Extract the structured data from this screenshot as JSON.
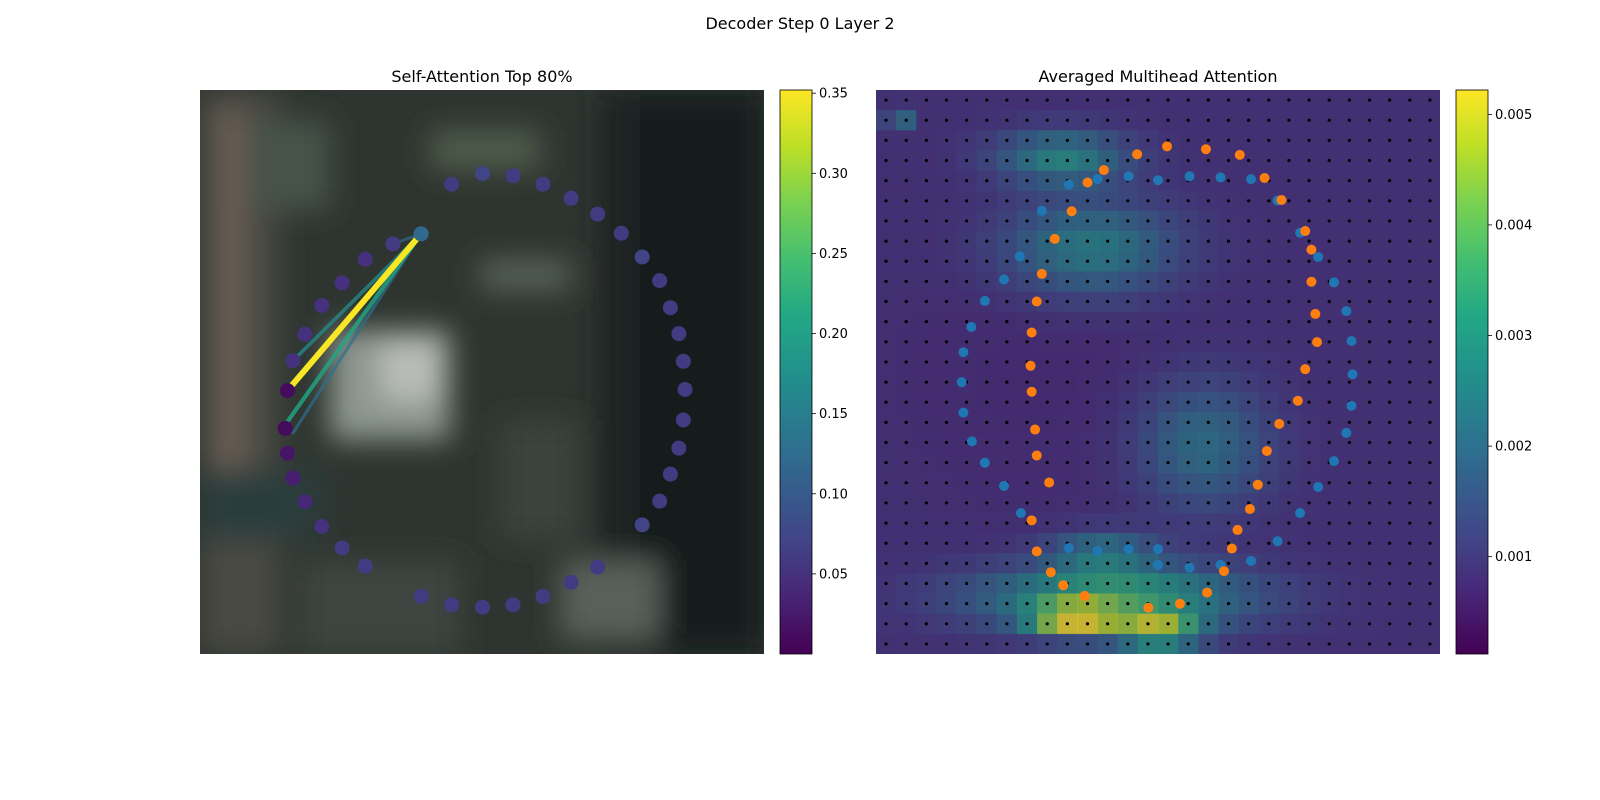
{
  "figure": {
    "title": "Decoder Step 0 Layer 2"
  },
  "chart_data": [
    {
      "type": "scatter",
      "title": "Self-Attention Top 80%",
      "xlim": [
        0,
        1
      ],
      "ylim": [
        0,
        1
      ],
      "axes_visible": false,
      "background": "blurred photo",
      "points_desc": "40 control points on a circle, colored by attention weight",
      "points": [
        {
          "x": 0.501,
          "y": 0.852,
          "w": 0.07
        },
        {
          "x": 0.555,
          "y": 0.848,
          "w": 0.06
        },
        {
          "x": 0.608,
          "y": 0.833,
          "w": 0.06
        },
        {
          "x": 0.658,
          "y": 0.808,
          "w": 0.06
        },
        {
          "x": 0.705,
          "y": 0.78,
          "w": 0.06
        },
        {
          "x": 0.747,
          "y": 0.746,
          "w": 0.06
        },
        {
          "x": 0.784,
          "y": 0.704,
          "w": 0.07
        },
        {
          "x": 0.815,
          "y": 0.662,
          "w": 0.06
        },
        {
          "x": 0.834,
          "y": 0.614,
          "w": 0.06
        },
        {
          "x": 0.849,
          "y": 0.568,
          "w": 0.06
        },
        {
          "x": 0.857,
          "y": 0.519,
          "w": 0.06
        },
        {
          "x": 0.86,
          "y": 0.469,
          "w": 0.06
        },
        {
          "x": 0.857,
          "y": 0.415,
          "w": 0.06
        },
        {
          "x": 0.849,
          "y": 0.365,
          "w": 0.06
        },
        {
          "x": 0.834,
          "y": 0.319,
          "w": 0.06
        },
        {
          "x": 0.815,
          "y": 0.271,
          "w": 0.06
        },
        {
          "x": 0.784,
          "y": 0.229,
          "w": 0.07
        },
        {
          "x": 0.705,
          "y": 0.154,
          "w": 0.06
        },
        {
          "x": 0.658,
          "y": 0.127,
          "w": 0.06
        },
        {
          "x": 0.608,
          "y": 0.102,
          "w": 0.06
        },
        {
          "x": 0.555,
          "y": 0.087,
          "w": 0.06
        },
        {
          "x": 0.501,
          "y": 0.083,
          "w": 0.06
        },
        {
          "x": 0.446,
          "y": 0.087,
          "w": 0.06
        },
        {
          "x": 0.392,
          "y": 0.102,
          "w": 0.06
        },
        {
          "x": 0.293,
          "y": 0.156,
          "w": 0.06
        },
        {
          "x": 0.252,
          "y": 0.188,
          "w": 0.06
        },
        {
          "x": 0.216,
          "y": 0.226,
          "w": 0.05
        },
        {
          "x": 0.186,
          "y": 0.27,
          "w": 0.04
        },
        {
          "x": 0.165,
          "y": 0.312,
          "w": 0.03
        },
        {
          "x": 0.155,
          "y": 0.356,
          "w": 0.02
        },
        {
          "x": 0.151,
          "y": 0.4,
          "w": 0.01
        },
        {
          "x": 0.155,
          "y": 0.467,
          "w": 0.01
        },
        {
          "x": 0.165,
          "y": 0.52,
          "w": 0.05
        },
        {
          "x": 0.186,
          "y": 0.567,
          "w": 0.05
        },
        {
          "x": 0.216,
          "y": 0.618,
          "w": 0.05
        },
        {
          "x": 0.252,
          "y": 0.658,
          "w": 0.05
        },
        {
          "x": 0.293,
          "y": 0.7,
          "w": 0.05
        },
        {
          "x": 0.342,
          "y": 0.727,
          "w": 0.06
        },
        {
          "x": 0.392,
          "y": 0.745,
          "w": 0.06
        },
        {
          "x": 0.446,
          "y": 0.833,
          "w": 0.06
        }
      ],
      "query_point": {
        "x": 0.392,
        "y": 0.745,
        "w": 0.12
      },
      "attention_lines": [
        {
          "to": [
            0.155,
            0.467
          ],
          "w": 0.35
        },
        {
          "to": [
            0.155,
            0.412
          ],
          "w": 0.21
        },
        {
          "to": [
            0.165,
            0.52
          ],
          "w": 0.17
        },
        {
          "to": [
            0.165,
            0.392
          ],
          "w": 0.13
        },
        {
          "to": [
            0.342,
            0.727
          ],
          "w": 0.12
        }
      ],
      "colorbar": {
        "ticks": [
          0.05,
          0.1,
          0.15,
          0.2,
          0.25,
          0.3,
          0.35
        ],
        "tick_labels": [
          "0.05",
          "0.10",
          "0.15",
          "0.20",
          "0.25",
          "0.30",
          "0.35"
        ],
        "range": [
          0.0,
          0.352
        ],
        "colormap": "viridis"
      }
    },
    {
      "type": "heatmap",
      "title": "Averaged Multihead Attention",
      "grid": [
        28,
        28
      ],
      "axes_visible": false,
      "overlay": "black grid points; blue and orange keypoint rings",
      "hotspots": [
        {
          "cx": 0.33,
          "cy": 0.12,
          "rx": 0.12,
          "ry": 0.05,
          "v": 0.0029
        },
        {
          "cx": 0.38,
          "cy": 0.28,
          "rx": 0.16,
          "ry": 0.09,
          "v": 0.0027
        },
        {
          "cx": 0.58,
          "cy": 0.63,
          "rx": 0.12,
          "ry": 0.12,
          "v": 0.0023
        },
        {
          "cx": 0.4,
          "cy": 0.82,
          "rx": 0.1,
          "ry": 0.04,
          "v": 0.0024
        },
        {
          "cx": 0.42,
          "cy": 0.9,
          "rx": 0.25,
          "ry": 0.06,
          "v": 0.0038
        },
        {
          "cx": 0.35,
          "cy": 0.94,
          "rx": 0.08,
          "ry": 0.03,
          "v": 0.0046
        },
        {
          "cx": 0.5,
          "cy": 0.96,
          "rx": 0.08,
          "ry": 0.03,
          "v": 0.0045
        },
        {
          "cx": 0.04,
          "cy": 0.05,
          "rx": 0.02,
          "ry": 0.02,
          "v": 0.003
        },
        {
          "cx": 0.3,
          "cy": 0.5,
          "rx": 0.3,
          "ry": 0.3,
          "v": 0.0006
        }
      ],
      "blue_series": [
        [
          0.5,
          0.842
        ],
        [
          0.556,
          0.847
        ],
        [
          0.611,
          0.842
        ],
        [
          0.665,
          0.835
        ],
        [
          0.712,
          0.8
        ],
        [
          0.752,
          0.75
        ],
        [
          0.784,
          0.704
        ],
        [
          0.812,
          0.658
        ],
        [
          0.834,
          0.608
        ],
        [
          0.843,
          0.56
        ],
        [
          0.845,
          0.504
        ],
        [
          0.843,
          0.445
        ],
        [
          0.834,
          0.392
        ],
        [
          0.812,
          0.341
        ],
        [
          0.784,
          0.296
        ],
        [
          0.752,
          0.253
        ],
        [
          0.712,
          0.196
        ],
        [
          0.665,
          0.158
        ],
        [
          0.611,
          0.155
        ],
        [
          0.556,
          0.153
        ],
        [
          0.5,
          0.16
        ],
        [
          0.448,
          0.153
        ],
        [
          0.393,
          0.158
        ],
        [
          0.342,
          0.168
        ],
        [
          0.294,
          0.214
        ],
        [
          0.255,
          0.295
        ],
        [
          0.227,
          0.336
        ],
        [
          0.193,
          0.374
        ],
        [
          0.169,
          0.42
        ],
        [
          0.155,
          0.465
        ],
        [
          0.152,
          0.518
        ],
        [
          0.155,
          0.572
        ],
        [
          0.17,
          0.623
        ],
        [
          0.193,
          0.661
        ],
        [
          0.227,
          0.702
        ],
        [
          0.257,
          0.75
        ],
        [
          0.342,
          0.812
        ],
        [
          0.393,
          0.817
        ],
        [
          0.448,
          0.814
        ],
        [
          0.5,
          0.814
        ]
      ],
      "orange_series": [
        [
          0.483,
          0.918
        ],
        [
          0.539,
          0.911
        ],
        [
          0.587,
          0.891
        ],
        [
          0.617,
          0.853
        ],
        [
          0.631,
          0.813
        ],
        [
          0.641,
          0.78
        ],
        [
          0.663,
          0.743
        ],
        [
          0.677,
          0.7
        ],
        [
          0.693,
          0.64
        ],
        [
          0.715,
          0.592
        ],
        [
          0.748,
          0.551
        ],
        [
          0.761,
          0.495
        ],
        [
          0.782,
          0.447
        ],
        [
          0.779,
          0.397
        ],
        [
          0.772,
          0.34
        ],
        [
          0.772,
          0.283
        ],
        [
          0.761,
          0.25
        ],
        [
          0.719,
          0.195
        ],
        [
          0.689,
          0.156
        ],
        [
          0.645,
          0.115
        ],
        [
          0.585,
          0.105
        ],
        [
          0.516,
          0.1
        ],
        [
          0.463,
          0.114
        ],
        [
          0.404,
          0.142
        ],
        [
          0.375,
          0.164
        ],
        [
          0.347,
          0.215
        ],
        [
          0.317,
          0.264
        ],
        [
          0.294,
          0.326
        ],
        [
          0.285,
          0.375
        ],
        [
          0.276,
          0.43
        ],
        [
          0.274,
          0.489
        ],
        [
          0.276,
          0.535
        ],
        [
          0.282,
          0.602
        ],
        [
          0.285,
          0.648
        ],
        [
          0.307,
          0.696
        ],
        [
          0.276,
          0.763
        ],
        [
          0.285,
          0.818
        ],
        [
          0.31,
          0.855
        ],
        [
          0.332,
          0.878
        ],
        [
          0.37,
          0.897
        ]
      ],
      "colorbar": {
        "ticks": [
          0.001,
          0.002,
          0.003,
          0.004,
          0.005
        ],
        "tick_labels": [
          "0.001",
          "0.002",
          "0.003",
          "0.004",
          "0.005"
        ],
        "range": [
          0.00012,
          0.00522
        ],
        "colormap": "viridis"
      }
    }
  ],
  "colors": {
    "blue_points": "#1f77b4",
    "orange_points": "#ff7f0e"
  }
}
